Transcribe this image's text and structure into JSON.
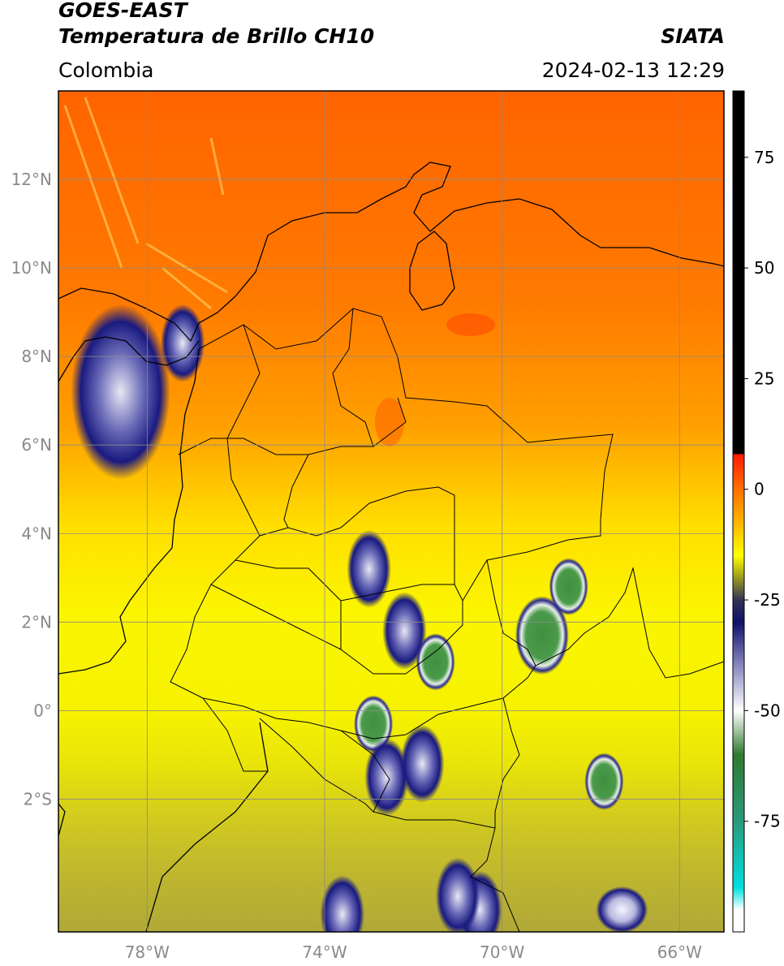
{
  "header": {
    "satellite": "GOES-EAST",
    "product": "Temperatura de Brillo CH10",
    "agency": "SIATA",
    "region": "Colombia",
    "timestamp": "2024-02-13 12:29"
  },
  "map": {
    "lon_range": [
      -80,
      -65
    ],
    "lat_range": [
      -5,
      14
    ],
    "lat_ticks": [
      {
        "value": 12,
        "label": "12°N"
      },
      {
        "value": 10,
        "label": "10°N"
      },
      {
        "value": 8,
        "label": "8°N"
      },
      {
        "value": 6,
        "label": "6°N"
      },
      {
        "value": 4,
        "label": "4°N"
      },
      {
        "value": 2,
        "label": "2°N"
      },
      {
        "value": 0,
        "label": "0°"
      },
      {
        "value": -2,
        "label": "2°S"
      }
    ],
    "lon_ticks": [
      {
        "value": -78,
        "label": "78°W"
      },
      {
        "value": -74,
        "label": "74°W"
      },
      {
        "value": -70,
        "label": "70°W"
      },
      {
        "value": -66,
        "label": "66°W"
      }
    ],
    "gridlines": true,
    "colors": {
      "warm_top": "#ff6a00",
      "mid": "#ff9a00",
      "cool": "#f7f000",
      "olive": "#b8b030",
      "cold_blue": "#1f2a8a",
      "very_cold_white": "#e8e8f2",
      "coldest_green": "#3a8a3a"
    },
    "clusters": [
      {
        "lon": -78.6,
        "lat": 7.2,
        "level": "blue"
      },
      {
        "lon": -77.2,
        "lat": 8.3,
        "level": "blue"
      },
      {
        "lon": -69.1,
        "lat": 1.7,
        "level": "green"
      },
      {
        "lon": -68.5,
        "lat": 2.8,
        "level": "green"
      },
      {
        "lon": -67.7,
        "lat": -1.6,
        "level": "green"
      },
      {
        "lon": -72.2,
        "lat": 1.8,
        "level": "blue"
      },
      {
        "lon": -71.5,
        "lat": 1.1,
        "level": "green"
      },
      {
        "lon": -72.9,
        "lat": -0.3,
        "level": "green"
      },
      {
        "lon": -73.0,
        "lat": 3.2,
        "level": "blue"
      },
      {
        "lon": -72.6,
        "lat": -1.5,
        "level": "blue"
      },
      {
        "lon": -71.8,
        "lat": -1.2,
        "level": "blue"
      },
      {
        "lon": -67.3,
        "lat": -4.5,
        "level": "white"
      },
      {
        "lon": -70.5,
        "lat": -4.5,
        "level": "blue"
      },
      {
        "lon": -73.6,
        "lat": -4.6,
        "level": "blue"
      },
      {
        "lon": -71.0,
        "lat": -4.2,
        "level": "blue"
      }
    ]
  },
  "colorbar": {
    "vmin": -100,
    "vmax": 90,
    "ticks": [
      {
        "value": 75,
        "label": "75"
      },
      {
        "value": 50,
        "label": "50"
      },
      {
        "value": 25,
        "label": "25"
      },
      {
        "value": 0,
        "label": "0"
      },
      {
        "value": -25,
        "label": "-25"
      },
      {
        "value": -50,
        "label": "-50"
      },
      {
        "value": -75,
        "label": "-75"
      }
    ],
    "stops": [
      {
        "value": 90,
        "color": "#000000"
      },
      {
        "value": 8,
        "color": "#000000"
      },
      {
        "value": 7.9,
        "color": "#ff1a00"
      },
      {
        "value": 0,
        "color": "#ff7000"
      },
      {
        "value": -10,
        "color": "#ffcc00"
      },
      {
        "value": -15,
        "color": "#ffff00"
      },
      {
        "value": -20,
        "color": "#999922"
      },
      {
        "value": -25,
        "color": "#333355"
      },
      {
        "value": -30,
        "color": "#10106a"
      },
      {
        "value": -40,
        "color": "#8a8ac2"
      },
      {
        "value": -50,
        "color": "#ffffff"
      },
      {
        "value": -60,
        "color": "#2f7a2f"
      },
      {
        "value": -75,
        "color": "#2a9a7a"
      },
      {
        "value": -90,
        "color": "#00e0e0"
      },
      {
        "value": -95,
        "color": "#ffffff"
      },
      {
        "value": -100,
        "color": "#ffffff"
      }
    ]
  }
}
